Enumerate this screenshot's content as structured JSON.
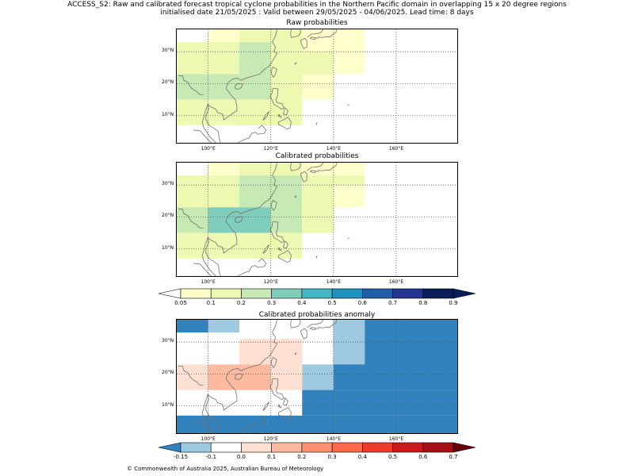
{
  "header": {
    "line1": "ACCESS_S2: Raw and calibrated forecast tropical cyclone probabilities in the Northern Pacific domain in overlapping 15 x 20 degree regions",
    "line2": "initialised date 21/05/2025 :  Valid between 29/05/2025 - 04/06/2025. Lead time: 8 days"
  },
  "map": {
    "lon_range": [
      90,
      180
    ],
    "lat_range": [
      1,
      37
    ],
    "lon_ticks": [
      "100°E",
      "120°E",
      "140°E",
      "160°E"
    ],
    "lon_tick_values": [
      100,
      120,
      140,
      160
    ],
    "lat_ticks": [
      "30°N",
      "20°N",
      "10°N"
    ],
    "lat_tick_values": [
      30,
      20,
      10
    ],
    "gridline_style": "dotted",
    "coastline_color": "#707070"
  },
  "panels": [
    {
      "title": "Raw probabilities",
      "cells": [
        {
          "lon": [
            100,
            110
          ],
          "lat": [
            33,
            37
          ],
          "color": "#ffffcc"
        },
        {
          "lon": [
            110,
            130
          ],
          "lat": [
            33,
            37
          ],
          "color": "#edf8b1"
        },
        {
          "lon": [
            130,
            150
          ],
          "lat": [
            33,
            37
          ],
          "color": "#ffffcc"
        },
        {
          "lon": [
            90,
            110
          ],
          "lat": [
            30,
            33
          ],
          "color": "#edf8b1"
        },
        {
          "lon": [
            110,
            120
          ],
          "lat": [
            30,
            33
          ],
          "color": "#c7e9b4"
        },
        {
          "lon": [
            120,
            130
          ],
          "lat": [
            30,
            33
          ],
          "color": "#edf8b1"
        },
        {
          "lon": [
            130,
            150
          ],
          "lat": [
            30,
            33
          ],
          "color": "#ffffcc"
        },
        {
          "lon": [
            90,
            110
          ],
          "lat": [
            23,
            30
          ],
          "color": "#edf8b1"
        },
        {
          "lon": [
            110,
            120
          ],
          "lat": [
            23,
            30
          ],
          "color": "#c7e9b4"
        },
        {
          "lon": [
            120,
            140
          ],
          "lat": [
            23,
            30
          ],
          "color": "#edf8b1"
        },
        {
          "lon": [
            140,
            150
          ],
          "lat": [
            23,
            30
          ],
          "color": "#ffffcc"
        },
        {
          "lon": [
            90,
            120
          ],
          "lat": [
            15,
            23
          ],
          "color": "#c7e9b4"
        },
        {
          "lon": [
            120,
            130
          ],
          "lat": [
            20,
            23
          ],
          "color": "#edf8b1"
        },
        {
          "lon": [
            130,
            140
          ],
          "lat": [
            20,
            23
          ],
          "color": "#ffffcc"
        },
        {
          "lon": [
            120,
            130
          ],
          "lat": [
            15,
            20
          ],
          "color": "#edf8b1"
        },
        {
          "lon": [
            130,
            140
          ],
          "lat": [
            15,
            20
          ],
          "color": "#ffffcc"
        },
        {
          "lon": [
            90,
            130
          ],
          "lat": [
            7,
            15
          ],
          "color": "#edf8b1"
        },
        {
          "lon": [
            110,
            130
          ],
          "lat": [
            7,
            15
          ],
          "color": "#edf8b1"
        }
      ]
    },
    {
      "title": "Calibrated probabilities",
      "cells": [
        {
          "lon": [
            100,
            110
          ],
          "lat": [
            33,
            37
          ],
          "color": "#ffffcc"
        },
        {
          "lon": [
            110,
            130
          ],
          "lat": [
            33,
            37
          ],
          "color": "#edf8b1"
        },
        {
          "lon": [
            130,
            150
          ],
          "lat": [
            33,
            37
          ],
          "color": "#ffffcc"
        },
        {
          "lon": [
            90,
            110
          ],
          "lat": [
            30,
            33
          ],
          "color": "#edf8b1"
        },
        {
          "lon": [
            110,
            130
          ],
          "lat": [
            30,
            33
          ],
          "color": "#c7e9b4"
        },
        {
          "lon": [
            130,
            150
          ],
          "lat": [
            30,
            33
          ],
          "color": "#edf8b1"
        },
        {
          "lon": [
            90,
            110
          ],
          "lat": [
            23,
            30
          ],
          "color": "#edf8b1"
        },
        {
          "lon": [
            110,
            130
          ],
          "lat": [
            23,
            30
          ],
          "color": "#c7e9b4"
        },
        {
          "lon": [
            130,
            140
          ],
          "lat": [
            23,
            30
          ],
          "color": "#edf8b1"
        },
        {
          "lon": [
            140,
            150
          ],
          "lat": [
            23,
            30
          ],
          "color": "#ffffcc"
        },
        {
          "lon": [
            90,
            100
          ],
          "lat": [
            15,
            23
          ],
          "color": "#c7e9b4"
        },
        {
          "lon": [
            100,
            120
          ],
          "lat": [
            15,
            23
          ],
          "color": "#7fcdbb"
        },
        {
          "lon": [
            120,
            130
          ],
          "lat": [
            15,
            23
          ],
          "color": "#c7e9b4"
        },
        {
          "lon": [
            130,
            140
          ],
          "lat": [
            15,
            23
          ],
          "color": "#edf8b1"
        },
        {
          "lon": [
            90,
            130
          ],
          "lat": [
            7,
            15
          ],
          "color": "#edf8b1"
        }
      ]
    },
    {
      "title": "Calibrated probabilities anomaly",
      "cells": [
        {
          "lon": [
            90,
            100
          ],
          "lat": [
            33,
            37
          ],
          "color": "#3182bd"
        },
        {
          "lon": [
            100,
            110
          ],
          "lat": [
            33,
            37
          ],
          "color": "#9ecae1"
        },
        {
          "lon": [
            140,
            180
          ],
          "lat": [
            15,
            37
          ],
          "color": "#3182bd"
        },
        {
          "lon": [
            140,
            150
          ],
          "lat": [
            23,
            37
          ],
          "color": "#9ecae1"
        },
        {
          "lon": [
            110,
            130
          ],
          "lat": [
            23,
            31
          ],
          "color": "#fee0d2"
        },
        {
          "lon": [
            90,
            100
          ],
          "lat": [
            15,
            23
          ],
          "color": "#fee0d2"
        },
        {
          "lon": [
            100,
            120
          ],
          "lat": [
            15,
            23
          ],
          "color": "#fcbba1"
        },
        {
          "lon": [
            120,
            130
          ],
          "lat": [
            15,
            23
          ],
          "color": "#fee0d2"
        },
        {
          "lon": [
            130,
            140
          ],
          "lat": [
            15,
            23
          ],
          "color": "#9ecae1"
        },
        {
          "lon": [
            130,
            180
          ],
          "lat": [
            7,
            15
          ],
          "color": "#3182bd"
        },
        {
          "lon": [
            90,
            180
          ],
          "lat": [
            1,
            7
          ],
          "color": "#3182bd"
        }
      ]
    }
  ],
  "colorbar_prob": {
    "ticks": [
      "0.05",
      "0.1",
      "0.2",
      "0.3",
      "0.4",
      "0.5",
      "0.6",
      "0.7",
      "0.8",
      "0.9"
    ],
    "colors": [
      "#ffffcc",
      "#edf8b1",
      "#c7e9b4",
      "#7fcdbb",
      "#41b6c4",
      "#1d91c0",
      "#225ea8",
      "#253494",
      "#081d58"
    ],
    "under_color": "#ffffff",
    "over_color": "#081d58"
  },
  "colorbar_anom": {
    "ticks": [
      "-0.15",
      "-0.1",
      "0.0",
      "0.1",
      "0.2",
      "0.3",
      "0.4",
      "0.5",
      "0.6",
      "0.7"
    ],
    "colors": [
      "#9ecae1",
      "#ffffff",
      "#fee0d2",
      "#fcbba1",
      "#fc9272",
      "#fb6a4a",
      "#ef3b2c",
      "#cb181d",
      "#a50f15"
    ],
    "under_color": "#3182bd",
    "over_color": "#67000d"
  },
  "footer": "© Commonwealth of Australia 2025, Australian Bureau of Meteorology"
}
